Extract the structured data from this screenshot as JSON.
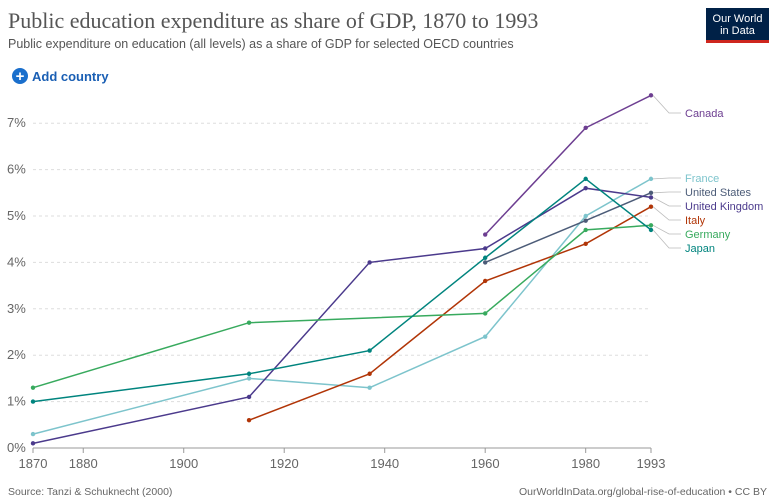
{
  "header": {
    "title": "Public education expenditure as share of GDP, 1870 to 1993",
    "subtitle": "Public expenditure on education (all levels) as a share of GDP for selected OECD countries",
    "logo_line1": "Our World",
    "logo_line2": "in Data"
  },
  "controls": {
    "add_country_label": "Add country"
  },
  "footer": {
    "source": "Source: Tanzi & Schuknecht (2000)",
    "url": "OurWorldInData.org/global-rise-of-education • CC BY"
  },
  "chart_data": {
    "type": "line",
    "title": "Public education expenditure as share of GDP, 1870 to 1993",
    "xlabel": "",
    "ylabel": "",
    "xlim": [
      1870,
      1993
    ],
    "ylim": [
      0,
      7.5
    ],
    "x_ticks": [
      1870,
      1880,
      1900,
      1920,
      1940,
      1960,
      1980,
      1993
    ],
    "y_ticks": [
      0,
      1,
      2,
      3,
      4,
      5,
      6,
      7
    ],
    "y_tick_labels": [
      "0%",
      "1%",
      "2%",
      "3%",
      "4%",
      "5%",
      "6%",
      "7%"
    ],
    "grid": "horizontal dashed",
    "legend": "right, inline labels",
    "series": [
      {
        "name": "Canada",
        "color": "#6d3e91",
        "x": [
          1960,
          1980,
          1993
        ],
        "y": [
          4.6,
          6.9,
          7.6
        ]
      },
      {
        "name": "France",
        "color": "#7dc4cc",
        "x": [
          1870,
          1913,
          1937,
          1960,
          1980,
          1993
        ],
        "y": [
          0.3,
          1.5,
          1.3,
          2.4,
          5.0,
          5.8
        ]
      },
      {
        "name": "United States",
        "color": "#4c5c78",
        "x": [
          1960,
          1980,
          1993
        ],
        "y": [
          4.0,
          4.9,
          5.5
        ]
      },
      {
        "name": "United Kingdom",
        "color": "#4b3a8c",
        "x": [
          1870,
          1913,
          1937,
          1960,
          1980,
          1993
        ],
        "y": [
          0.1,
          1.1,
          4.0,
          4.3,
          5.6,
          5.4
        ]
      },
      {
        "name": "Italy",
        "color": "#b13507",
        "x": [
          1913,
          1937,
          1960,
          1980,
          1993
        ],
        "y": [
          0.6,
          1.6,
          3.6,
          4.4,
          5.2
        ]
      },
      {
        "name": "Germany",
        "color": "#38aa5e",
        "x": [
          1870,
          1913,
          1960,
          1980,
          1993
        ],
        "y": [
          1.3,
          2.7,
          2.9,
          4.7,
          4.8
        ]
      },
      {
        "name": "Japan",
        "color": "#00847e",
        "x": [
          1870,
          1913,
          1937,
          1960,
          1980,
          1993
        ],
        "y": [
          1.0,
          1.6,
          2.1,
          4.1,
          5.8,
          4.7
        ]
      }
    ]
  }
}
